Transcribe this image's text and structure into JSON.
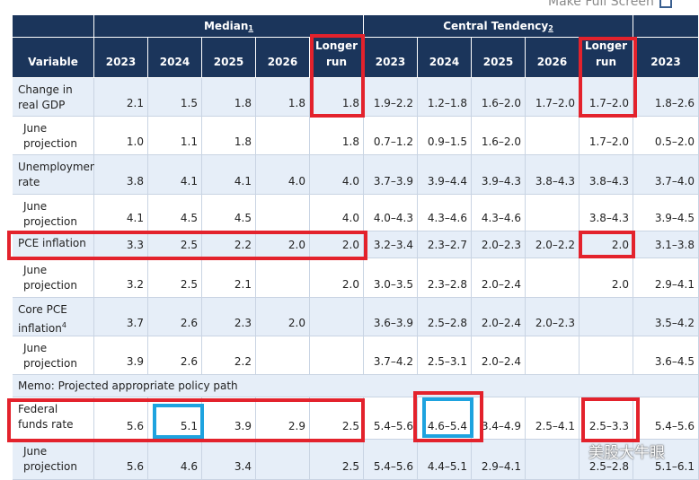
{
  "header": {
    "link": "Make Full Screen"
  },
  "table": {
    "group_headers": [
      {
        "label": "Median",
        "note": "1"
      },
      {
        "label": "Central Tendency",
        "note": "2"
      }
    ],
    "columns": [
      "Variable",
      "2023",
      "2024",
      "2025",
      "2026",
      "Longer run",
      "2023",
      "2024",
      "2025",
      "2026",
      "Longer run",
      "2023"
    ],
    "rows": [
      {
        "variable": "Change in real GDP",
        "cells": [
          "2.1",
          "1.5",
          "1.8",
          "1.8",
          "1.8",
          "1.9–2.2",
          "1.2–1.8",
          "1.6–2.0",
          "1.7–2.0",
          "1.7–2.0",
          "1.8–2.6"
        ]
      },
      {
        "variable": "June projection",
        "cells": [
          "1.0",
          "1.1",
          "1.8",
          null,
          "1.8",
          "0.7–1.2",
          "0.9–1.5",
          "1.6–2.0",
          null,
          "1.7–2.0",
          "0.5–2.0"
        ]
      },
      {
        "variable": "Unemployment rate",
        "cells": [
          "3.8",
          "4.1",
          "4.1",
          "4.0",
          "4.0",
          "3.7–3.9",
          "3.9–4.4",
          "3.9–4.3",
          "3.8–4.3",
          "3.8–4.3",
          "3.7–4.0"
        ]
      },
      {
        "variable": "June projection",
        "cells": [
          "4.1",
          "4.5",
          "4.5",
          null,
          "4.0",
          "4.0–4.3",
          "4.3–4.6",
          "4.3–4.6",
          null,
          "3.8–4.3",
          "3.9–4.5"
        ]
      },
      {
        "variable": "PCE inflation",
        "cells": [
          "3.3",
          "2.5",
          "2.2",
          "2.0",
          "2.0",
          "3.2–3.4",
          "2.3–2.7",
          "2.0–2.3",
          "2.0–2.2",
          "2.0",
          "3.1–3.8"
        ]
      },
      {
        "variable": "June projection",
        "cells": [
          "3.2",
          "2.5",
          "2.1",
          null,
          "2.0",
          "3.0–3.5",
          "2.3–2.8",
          "2.0–2.4",
          null,
          "2.0",
          "2.9–4.1"
        ]
      },
      {
        "variable": "Core PCE inflation",
        "note": "4",
        "cells": [
          "3.7",
          "2.6",
          "2.3",
          "2.0",
          null,
          "3.6–3.9",
          "2.5–2.8",
          "2.0–2.4",
          "2.0–2.3",
          null,
          "3.5–4.2"
        ]
      },
      {
        "variable": "June projection",
        "cells": [
          "3.9",
          "2.6",
          "2.2",
          null,
          null,
          "3.7–4.2",
          "2.5–3.1",
          "2.0–2.4",
          null,
          null,
          "3.6–4.5"
        ]
      },
      {
        "memo": "Memo: Projected appropriate policy path"
      },
      {
        "variable": "Federal funds rate",
        "cells": [
          "5.6",
          "5.1",
          "3.9",
          "2.9",
          "2.5",
          "5.4–5.6",
          "4.6–5.4",
          "3.4–4.9",
          "2.5–4.1",
          "2.5–3.3",
          "5.4–5.6"
        ]
      },
      {
        "variable": "June projection",
        "cells": [
          "5.6",
          "4.6",
          "3.4",
          null,
          "2.5",
          "5.4–5.6",
          "4.4–5.1",
          "2.9–4.1",
          null,
          "2.5–2.8",
          "5.1–6.1"
        ]
      }
    ]
  },
  "watermark": "美股大牛眼"
}
